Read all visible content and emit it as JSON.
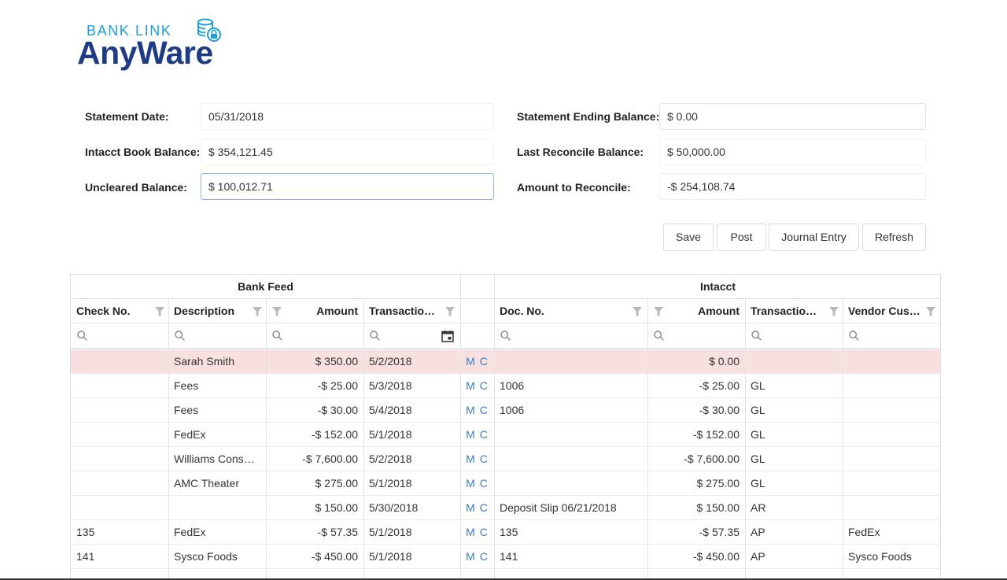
{
  "logo": {
    "top_text": "BANK LINK",
    "main_text": "AnyWare"
  },
  "form": {
    "statement_date": {
      "label": "Statement Date:",
      "value": "05/31/2018"
    },
    "intacct_book_balance": {
      "label": "Intacct Book Balance:",
      "value": "$ 354,121.45"
    },
    "uncleared_balance": {
      "label": "Uncleared Balance:",
      "value": "$ 100,012.71"
    },
    "statement_ending_balance": {
      "label": "Statement Ending Balance:",
      "value": "$ 0.00"
    },
    "last_reconcile_balance": {
      "label": "Last Reconcile Balance:",
      "value": "$ 50,000.00"
    },
    "amount_to_reconcile": {
      "label": "Amount to Reconcile:",
      "value": "-$ 254,108.74"
    }
  },
  "toolbar": {
    "save": "Save",
    "post": "Post",
    "journal_entry": "Journal Entry",
    "refresh": "Refresh"
  },
  "grid": {
    "bank_feed_title": "Bank Feed",
    "intacct_title": "Intacct",
    "columns": {
      "check_no": "Check No.",
      "description": "Description",
      "amount": "Amount",
      "transaction": "Transaction ...",
      "doc_no": "Doc. No.",
      "i_amount": "Amount",
      "i_transaction": "Transaction ...",
      "vendor": "Vendor Cust..."
    },
    "match_labels": {
      "m": "M",
      "c": "C"
    },
    "rows": [
      {
        "check": "",
        "desc": "Sarah Smith",
        "amount": "$ 350.00",
        "date": "5/2/2018",
        "doc": "",
        "iamount": "$ 0.00",
        "type": "",
        "vendor": ""
      },
      {
        "check": "",
        "desc": "Fees",
        "amount": "-$ 25.00",
        "date": "5/3/2018",
        "doc": "1006",
        "iamount": "-$ 25.00",
        "type": "GL",
        "vendor": ""
      },
      {
        "check": "",
        "desc": "Fees",
        "amount": "-$ 30.00",
        "date": "5/4/2018",
        "doc": "1006",
        "iamount": "-$ 30.00",
        "type": "GL",
        "vendor": ""
      },
      {
        "check": "",
        "desc": "FedEx",
        "amount": "-$ 152.00",
        "date": "5/1/2018",
        "doc": "",
        "iamount": "-$ 152.00",
        "type": "GL",
        "vendor": ""
      },
      {
        "check": "",
        "desc": "Williams Consul...",
        "amount": "-$ 7,600.00",
        "date": "5/2/2018",
        "doc": "",
        "iamount": "-$ 7,600.00",
        "type": "GL",
        "vendor": ""
      },
      {
        "check": "",
        "desc": "AMC Theater",
        "amount": "$ 275.00",
        "date": "5/1/2018",
        "doc": "",
        "iamount": "$ 275.00",
        "type": "GL",
        "vendor": ""
      },
      {
        "check": "",
        "desc": "",
        "amount": "$ 150.00",
        "date": "5/30/2018",
        "doc": "Deposit Slip 06/21/2018",
        "iamount": "$ 150.00",
        "type": "AR",
        "vendor": ""
      },
      {
        "check": "135",
        "desc": "FedEx",
        "amount": "-$ 57.35",
        "date": "5/1/2018",
        "doc": "135",
        "iamount": "-$ 57.35",
        "type": "AP",
        "vendor": "FedEx"
      },
      {
        "check": "141",
        "desc": "Sysco Foods",
        "amount": "-$ 450.00",
        "date": "5/1/2018",
        "doc": "141",
        "iamount": "-$ 450.00",
        "type": "AP",
        "vendor": "Sysco Foods"
      }
    ]
  },
  "colors": {
    "accent_blue": "#3a7cc4",
    "highlight_row": "#f8dfe0",
    "logo_dark": "#1f3b86",
    "logo_light": "#1c9fd8"
  }
}
